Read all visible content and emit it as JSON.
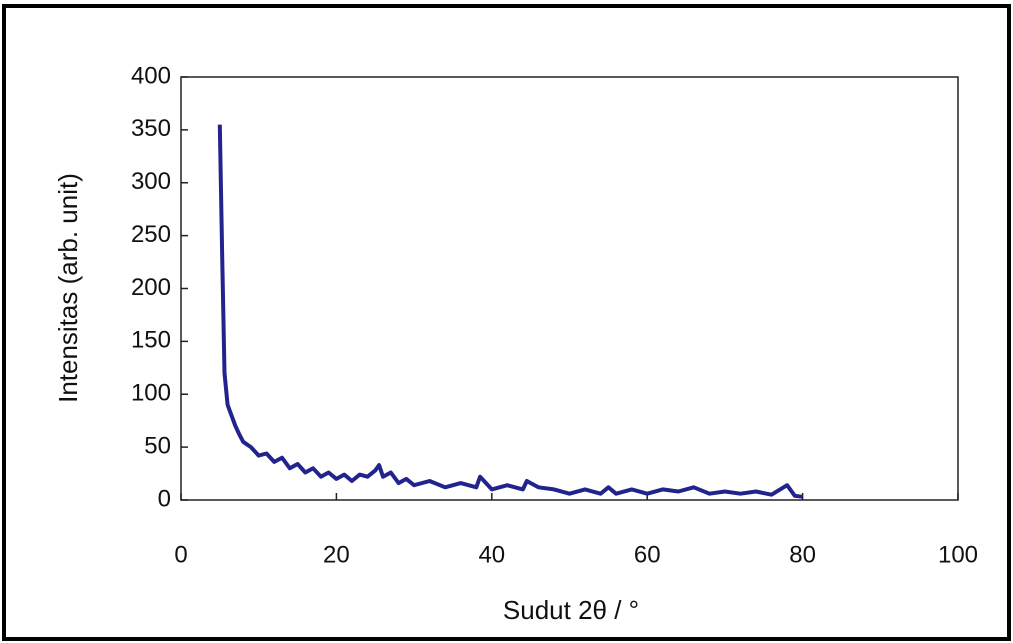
{
  "chart_data": {
    "type": "line",
    "xlabel": "Sudut 2θ / °",
    "ylabel": "Intensitas (arb. unit)",
    "x": [
      5,
      5.3,
      5.6,
      6,
      6.5,
      7,
      7.5,
      8,
      9,
      10,
      11,
      12,
      13,
      14,
      15,
      16,
      17,
      18,
      19,
      20,
      21,
      22,
      23,
      24,
      25,
      25.5,
      26,
      27,
      28,
      29,
      30,
      32,
      34,
      36,
      38,
      38.5,
      40,
      42,
      44,
      44.5,
      46,
      48,
      50,
      52,
      54,
      55,
      56,
      58,
      60,
      62,
      64,
      66,
      68,
      70,
      72,
      74,
      76,
      78,
      79,
      80
    ],
    "series": [
      {
        "color": "#23238e",
        "values": [
          355,
          230,
          120,
          90,
          80,
          70,
          62,
          55,
          50,
          42,
          44,
          36,
          40,
          30,
          34,
          26,
          30,
          22,
          26,
          20,
          24,
          18,
          24,
          22,
          28,
          33,
          22,
          26,
          16,
          20,
          14,
          18,
          12,
          16,
          12,
          22,
          10,
          14,
          10,
          18,
          12,
          10,
          6,
          10,
          6,
          12,
          6,
          10,
          6,
          10,
          8,
          12,
          6,
          8,
          6,
          8,
          5,
          14,
          4,
          3
        ]
      }
    ],
    "xlim": [
      0,
      100
    ],
    "xticks": [
      0,
      20,
      40,
      60,
      80,
      100
    ],
    "ylim": [
      0,
      400
    ],
    "yticks": [
      0,
      50,
      100,
      150,
      200,
      250,
      300,
      350,
      400
    ]
  }
}
